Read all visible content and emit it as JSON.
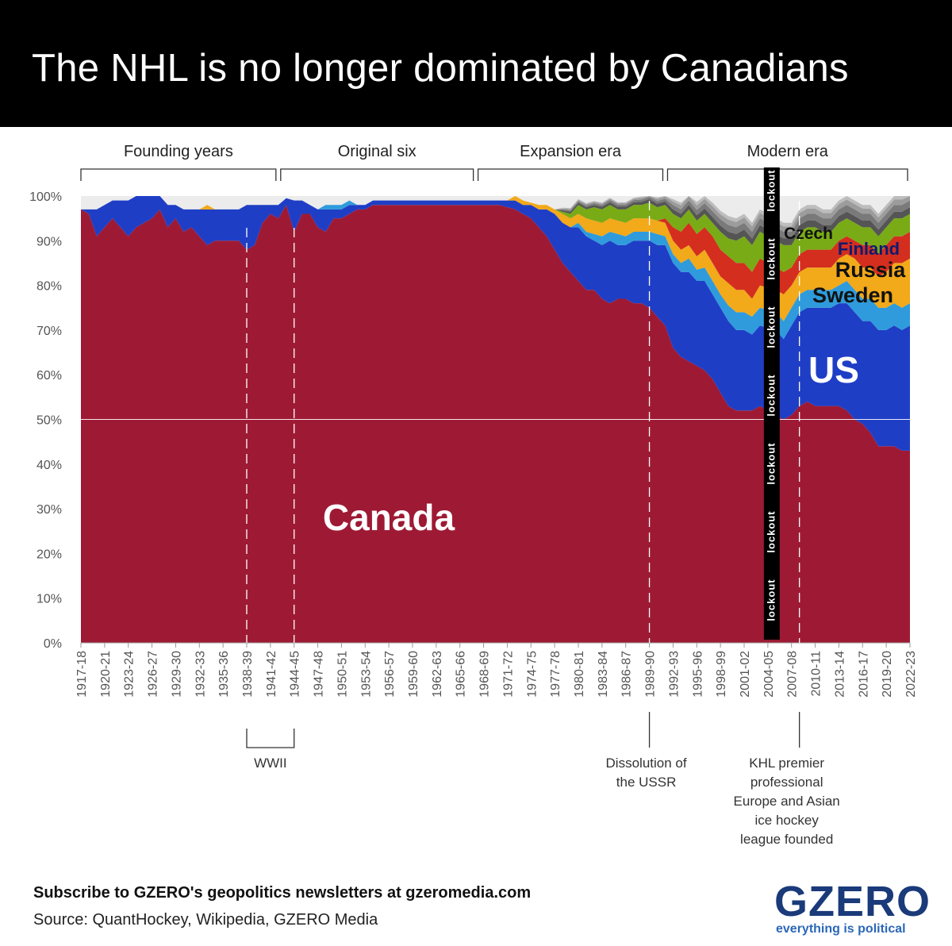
{
  "title": "The NHL is no longer dominated by Canadians",
  "footer": {
    "subscribe": "Subscribe to GZERO's geopolitics newsletters at gzeromedia.com",
    "source": "Source: QuantHockey, Wikipedia, GZERO Media"
  },
  "logo": {
    "word": "GZERO",
    "tagline": "everything is political"
  },
  "chart_data": {
    "type": "area",
    "stacked": true,
    "y_axis": {
      "min": 0,
      "max": 100,
      "unit": "%",
      "ticks": [
        "0%",
        "10%",
        "20%",
        "30%",
        "40%",
        "50%",
        "60%",
        "70%",
        "80%",
        "90%",
        "100%"
      ]
    },
    "x_tick_labels": [
      "1917-18",
      "1920-21",
      "1923-24",
      "1926-27",
      "1929-30",
      "1932-33",
      "1935-36",
      "1938-39",
      "1941-42",
      "1944-45",
      "1947-48",
      "1950-51",
      "1953-54",
      "1956-57",
      "1959-60",
      "1962-63",
      "1965-66",
      "1968-69",
      "1971-72",
      "1974-75",
      "1977-78",
      "1980-81",
      "1983-84",
      "1986-87",
      "1989-90",
      "1992-93",
      "1995-96",
      "1998-99",
      "2001-02",
      "2004-05",
      "2007-08",
      "2010-11",
      "2013-14",
      "2016-17",
      "2019-20",
      "2022-23"
    ],
    "x": [
      1917,
      1918,
      1919,
      1920,
      1921,
      1922,
      1923,
      1924,
      1925,
      1926,
      1927,
      1928,
      1929,
      1930,
      1931,
      1932,
      1933,
      1934,
      1935,
      1936,
      1937,
      1938,
      1939,
      1940,
      1941,
      1942,
      1943,
      1944,
      1945,
      1946,
      1947,
      1948,
      1949,
      1950,
      1951,
      1952,
      1953,
      1954,
      1955,
      1956,
      1957,
      1958,
      1959,
      1960,
      1961,
      1962,
      1963,
      1964,
      1965,
      1966,
      1967,
      1968,
      1969,
      1970,
      1971,
      1972,
      1973,
      1974,
      1975,
      1976,
      1977,
      1978,
      1979,
      1980,
      1981,
      1982,
      1983,
      1984,
      1985,
      1986,
      1987,
      1988,
      1989,
      1990,
      1991,
      1992,
      1993,
      1994,
      1995,
      1996,
      1997,
      1998,
      1999,
      2000,
      2001,
      2002,
      2003,
      2005,
      2006,
      2007,
      2008,
      2009,
      2010,
      2011,
      2012,
      2013,
      2014,
      2015,
      2016,
      2017,
      2018,
      2019,
      2020,
      2021,
      2022
    ],
    "series": [
      {
        "name": "Canada",
        "color": "#9e1a34",
        "values": [
          97,
          96,
          91,
          93,
          95,
          93,
          91,
          93,
          94,
          95,
          97,
          93,
          95,
          92,
          93,
          91,
          89,
          90,
          90,
          90,
          90,
          88,
          89,
          94,
          96,
          95,
          98,
          92,
          96,
          96,
          93,
          92,
          95,
          95,
          96,
          97,
          97,
          98,
          98,
          98,
          98,
          98,
          98,
          98,
          98,
          98,
          98,
          98,
          98,
          98,
          98,
          98,
          98,
          98,
          97.5,
          97,
          96,
          95,
          93,
          91,
          88,
          85,
          83,
          81,
          79,
          79,
          77,
          76,
          77,
          77,
          76,
          76,
          75,
          73,
          71,
          66,
          64,
          63,
          62,
          61,
          59,
          56,
          53,
          52,
          52,
          52,
          53,
          51,
          50,
          51,
          53,
          54,
          53,
          53,
          53,
          53,
          52,
          50,
          49,
          47,
          44,
          44,
          44,
          43,
          43
        ]
      },
      {
        "name": "US",
        "color": "#1f3ec6",
        "values": [
          0,
          1,
          6,
          5,
          4,
          6,
          8,
          7,
          6,
          5,
          3,
          5,
          3,
          5,
          4,
          6,
          8,
          7,
          7,
          7,
          7,
          10,
          9,
          4,
          2,
          3,
          1.5,
          7,
          3,
          2,
          4,
          5,
          2,
          2,
          2,
          1,
          1,
          1,
          1,
          1,
          1,
          1,
          1,
          1,
          1,
          1,
          1,
          1,
          1,
          1,
          1,
          1,
          1,
          1,
          1.5,
          2,
          2,
          3,
          4,
          6,
          8,
          9,
          10,
          12,
          12,
          11,
          12,
          14,
          12,
          12,
          14,
          14,
          15,
          16,
          18,
          19,
          19,
          20,
          19,
          20,
          19,
          19,
          19,
          18,
          18,
          17,
          18,
          19,
          18,
          20,
          21,
          21,
          22,
          22,
          22,
          23,
          24,
          24,
          23,
          25,
          26,
          26,
          27,
          27,
          28
        ]
      },
      {
        "name": "Czech",
        "color": "#2f9bdc",
        "values": [
          0,
          0,
          0,
          0,
          0,
          0,
          0,
          0,
          0,
          0,
          0,
          0,
          0,
          0,
          0,
          0,
          0,
          0,
          0,
          0,
          0,
          0,
          0,
          0,
          0,
          0,
          0,
          0,
          0,
          0,
          0,
          1,
          1,
          1,
          1,
          0,
          0,
          0,
          0,
          0,
          0,
          0,
          0,
          0,
          0,
          0,
          0,
          0,
          0,
          0,
          0,
          0,
          0,
          0,
          0,
          0,
          0,
          0,
          0,
          0,
          0,
          0,
          0,
          1,
          1,
          1.5,
          2,
          2,
          2.5,
          2,
          2,
          2,
          2,
          2.5,
          2,
          2,
          2,
          3,
          2.5,
          3,
          3,
          3,
          3.5,
          4,
          4,
          4,
          4,
          4,
          4,
          4,
          4,
          4,
          4,
          4,
          4,
          4,
          5,
          5,
          5,
          5,
          5,
          5,
          5,
          5,
          5
        ]
      },
      {
        "name": "Sweden",
        "color": "#f2a91a",
        "values": [
          0,
          0,
          0,
          0,
          0,
          0,
          0,
          0,
          0,
          0,
          0,
          0,
          0,
          0,
          0,
          0,
          1,
          0,
          0,
          0,
          0,
          0,
          0,
          0,
          0,
          0,
          0,
          0,
          0,
          0,
          0,
          0,
          0,
          0,
          0,
          0,
          0,
          0,
          0,
          0,
          0,
          0,
          0,
          0,
          0,
          0,
          0,
          0,
          0,
          0,
          0,
          0,
          0,
          0,
          0,
          1,
          1,
          0.5,
          1,
          1,
          1,
          2,
          2,
          2,
          3,
          3,
          3,
          3,
          3,
          3,
          3,
          3,
          3,
          3,
          3,
          3,
          3,
          3,
          3,
          4,
          4,
          4,
          5,
          5,
          5,
          4,
          5,
          5,
          6,
          5,
          5,
          5,
          5,
          5,
          5,
          6,
          6,
          7,
          7,
          7,
          7,
          8,
          9,
          10,
          10
        ]
      },
      {
        "name": "Russia",
        "color": "#d42e1f",
        "values": [
          0,
          0,
          0,
          0,
          0,
          0,
          0,
          0,
          0,
          0,
          0,
          0,
          0,
          0,
          0,
          0,
          0,
          0,
          0,
          0,
          0,
          0,
          0,
          0,
          0,
          0,
          0,
          0,
          0,
          0,
          0,
          0,
          0,
          0,
          0,
          0,
          0,
          0,
          0,
          0,
          0,
          0,
          0,
          0,
          0,
          0,
          0,
          0,
          0,
          0,
          0,
          0,
          0,
          0,
          0,
          0,
          0,
          0,
          0,
          0,
          0,
          0,
          0,
          0,
          0,
          0,
          0,
          0,
          0,
          0,
          0,
          0,
          0,
          0,
          1,
          3,
          4,
          5,
          5,
          5,
          6,
          6,
          6,
          6,
          6,
          6,
          6,
          5,
          5,
          4,
          4,
          4,
          4,
          4,
          4,
          4,
          4,
          4,
          5,
          5,
          5,
          6,
          6,
          6,
          6
        ]
      },
      {
        "name": "Finland",
        "color": "#79ab16",
        "values": [
          0,
          0,
          0,
          0,
          0,
          0,
          0,
          0,
          0,
          0,
          0,
          0,
          0,
          0,
          0,
          0,
          0,
          0,
          0,
          0,
          0,
          0,
          0,
          0,
          0,
          0,
          0,
          0,
          0,
          0,
          0,
          0,
          0,
          0,
          0,
          0,
          0,
          0,
          0,
          0,
          0,
          0,
          0,
          0,
          0,
          0,
          0,
          0,
          0,
          0,
          0,
          0,
          0,
          0,
          0,
          0,
          0,
          0,
          0,
          0,
          0,
          0.5,
          1,
          2,
          2,
          3,
          3,
          3,
          2.5,
          3,
          3,
          3,
          3.5,
          3,
          3,
          3,
          3,
          3,
          3,
          3,
          3,
          4,
          4,
          5,
          6,
          6,
          6,
          6,
          6,
          5,
          5,
          5,
          5,
          4,
          4,
          4,
          4,
          4,
          4,
          4,
          4,
          4,
          4,
          4,
          4
        ]
      },
      {
        "name": "",
        "color": "#555555",
        "values": [
          0,
          0,
          0,
          0,
          0,
          0,
          0,
          0,
          0,
          0,
          0,
          0,
          0,
          0,
          0,
          0,
          0,
          0,
          0,
          0,
          0,
          0,
          0,
          0,
          0,
          0,
          0,
          0,
          0,
          0,
          0,
          0,
          0,
          0,
          0,
          0,
          0,
          0,
          0,
          0,
          0,
          0,
          0,
          0,
          0,
          0,
          0,
          0,
          0,
          0,
          0,
          0,
          0,
          0,
          0,
          0,
          0,
          0,
          0,
          0,
          0,
          0.3,
          0.5,
          0.5,
          0.5,
          0.5,
          0.6,
          0.6,
          0.6,
          0.6,
          0.6,
          0.7,
          0.8,
          0.8,
          0.8,
          1,
          1,
          1,
          1.2,
          1.2,
          1.3,
          1.4,
          1.5,
          1.5,
          1.5,
          1.5,
          1.5,
          1.5,
          1.5,
          1.5,
          1.5,
          1.5,
          1.5,
          1.5,
          1.5,
          1.5,
          1.5,
          1.5,
          1.5,
          1.5,
          1.5,
          1.5,
          1.5,
          1.5,
          1.5
        ]
      },
      {
        "name": "",
        "color": "#7a7a7a",
        "values": [
          0,
          0,
          0,
          0,
          0,
          0,
          0,
          0,
          0,
          0,
          0,
          0,
          0,
          0,
          0,
          0,
          0,
          0,
          0,
          0,
          0,
          0,
          0,
          0,
          0,
          0,
          0,
          0,
          0,
          0,
          0,
          0,
          0,
          0,
          0,
          0,
          0,
          0,
          0,
          0,
          0,
          0,
          0,
          0,
          0,
          0,
          0,
          0,
          0,
          0,
          0,
          0,
          0,
          0,
          0,
          0,
          0,
          0,
          0,
          0,
          0,
          0.2,
          0.3,
          0.3,
          0.4,
          0.4,
          0.4,
          0.5,
          0.5,
          0.5,
          0.5,
          0.5,
          0.5,
          0.6,
          0.6,
          1,
          1,
          1,
          1.2,
          1.2,
          1.3,
          1.4,
          1.5,
          1.5,
          1.5,
          1.5,
          1.5,
          1.5,
          1.5,
          1.5,
          1.5,
          1.5,
          1.5,
          1.5,
          1.5,
          1.5,
          1.5,
          1.5,
          1.5,
          1.5,
          1.5,
          1.5,
          1.5,
          1.5,
          1.5
        ]
      },
      {
        "name": "",
        "color": "#9c9c9c",
        "values": [
          0,
          0,
          0,
          0,
          0,
          0,
          0,
          0,
          0,
          0,
          0,
          0,
          0,
          0,
          0,
          0,
          0,
          0,
          0,
          0,
          0,
          0,
          0,
          0,
          0,
          0,
          0,
          0,
          0,
          0,
          0,
          0,
          0,
          0,
          0,
          0,
          0,
          0,
          0,
          0,
          0,
          0,
          0,
          0,
          0,
          0,
          0,
          0,
          0,
          0,
          0,
          0,
          0,
          0,
          0,
          0,
          0,
          0,
          0,
          0,
          0,
          0.2,
          0.3,
          0.3,
          0.3,
          0.3,
          0.3,
          0.3,
          0.3,
          0.3,
          0.3,
          0.4,
          0.4,
          0.5,
          0.5,
          0.8,
          0.9,
          1,
          1,
          1,
          1.1,
          1.1,
          1.2,
          1.2,
          1.2,
          1.2,
          1.2,
          1.2,
          1.2,
          1.2,
          1.2,
          1.2,
          1.2,
          1.2,
          1.2,
          1.2,
          1.2,
          1.2,
          1.2,
          1.2,
          1.2,
          1.2,
          1.2,
          1.2,
          1.2
        ]
      },
      {
        "name": "",
        "color": "#bdbdbd",
        "values": [
          0,
          0,
          0,
          0,
          0,
          0,
          0,
          0,
          0,
          0,
          0,
          0,
          0,
          0,
          0,
          0,
          0,
          0,
          0,
          0,
          0,
          0,
          0,
          0,
          0,
          0,
          0,
          0,
          0,
          0,
          0,
          0,
          0,
          0,
          0,
          0,
          0,
          0,
          0,
          0,
          0,
          0,
          0,
          0,
          0,
          0,
          0,
          0,
          0,
          0,
          0,
          0,
          0,
          0,
          0,
          0,
          0,
          0,
          0,
          0,
          0,
          0.2,
          0.2,
          0.2,
          0.2,
          0.2,
          0.2,
          0.2,
          0.2,
          0.2,
          0.2,
          0.3,
          0.3,
          0.3,
          0.3,
          0.5,
          0.6,
          0.7,
          0.8,
          0.8,
          0.8,
          0.8,
          0.8,
          0.8,
          0.8,
          0.8,
          0.8,
          0.8,
          0.8,
          0.8,
          0.8,
          0.8,
          0.8,
          0.8,
          0.8,
          0.8,
          0.8,
          0.8,
          0.8,
          0.8,
          0.8,
          0.8,
          0.8,
          0.8,
          0.8
        ]
      }
    ],
    "remainder_color": "#ececec",
    "eras": [
      {
        "label": "Founding years",
        "start": 1917,
        "end": 1942
      },
      {
        "label": "Original six",
        "start": 1942,
        "end": 1967
      },
      {
        "label": "Expansion era",
        "start": 1967,
        "end": 1991
      },
      {
        "label": "Modern era",
        "start": 1991,
        "end": 2022
      }
    ],
    "markers": [
      {
        "label": "WWII",
        "start": 1938,
        "end": 1944,
        "type": "range"
      },
      {
        "label": "Dissolution of the USSR",
        "lines": [
          "Dissolution of",
          "the USSR"
        ],
        "at": 1989,
        "type": "line"
      },
      {
        "label": "KHL premier professional Europe and Asian ice hockey league founded",
        "lines": [
          "KHL premier",
          "professional",
          "Europe and Asian",
          "ice hockey",
          "league founded"
        ],
        "at": 2008,
        "type": "line"
      }
    ],
    "lockout": {
      "season": "2004-05",
      "label": "lockout",
      "repeat": 7
    },
    "reference_line": 50,
    "labels": [
      {
        "text": "Canada",
        "series": "Canada"
      },
      {
        "text": "US",
        "series": "US"
      },
      {
        "text": "Sweden",
        "series": "Sweden"
      },
      {
        "text": "Russia",
        "series": "Russia"
      },
      {
        "text": "Finland",
        "series": "Finland"
      },
      {
        "text": "Czech",
        "series": "Czech"
      }
    ]
  }
}
